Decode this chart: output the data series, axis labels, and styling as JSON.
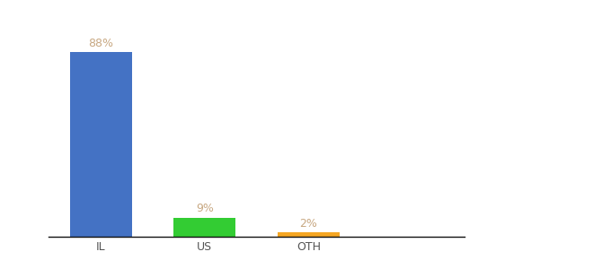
{
  "categories": [
    "IL",
    "US",
    "OTH"
  ],
  "values": [
    88,
    9,
    2
  ],
  "bar_colors": [
    "#4472c4",
    "#33cc33",
    "#f5a623"
  ],
  "labels": [
    "88%",
    "9%",
    "2%"
  ],
  "label_color": "#c8a882",
  "ylim": [
    0,
    100
  ],
  "background_color": "#ffffff",
  "bar_width": 0.6,
  "label_fontsize": 9,
  "tick_fontsize": 9,
  "tick_color": "#555555",
  "spine_color": "#111111",
  "x_positions": [
    0,
    1,
    2
  ],
  "xlim": [
    -0.5,
    3.5
  ]
}
